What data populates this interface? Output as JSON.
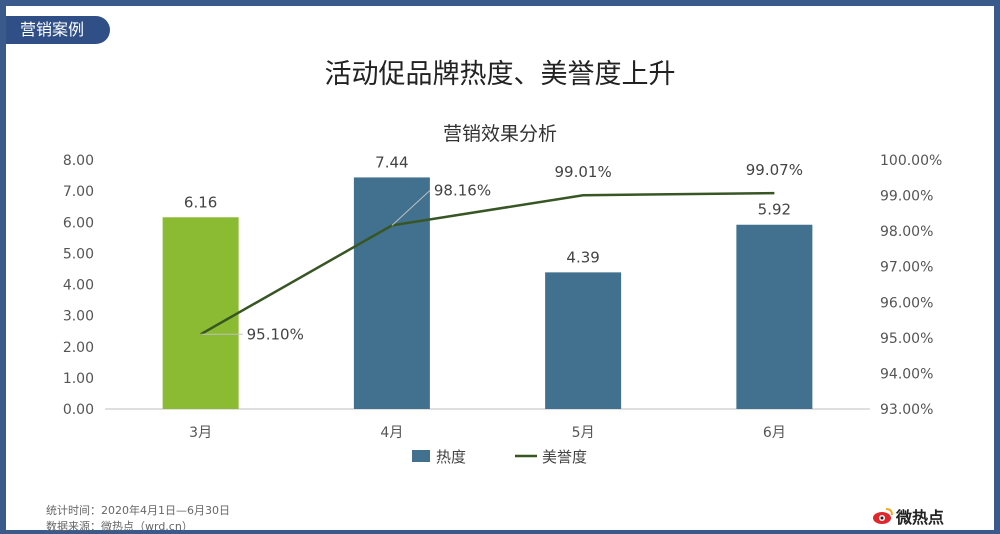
{
  "tag": "营销案例",
  "main_title": "活动促品牌热度、美誉度上升",
  "footnote": "统计时间：2020年4月1日—6月30日",
  "footnote_2": "数据来源：微热点（wrd.cn）",
  "logo_text": "微热点",
  "colors": {
    "bar_default": "#41718f",
    "bar_highlight": "#8bbb32",
    "line": "#375623",
    "frame": "#3a5a8c",
    "tag_bg": "#2f4f86"
  },
  "chart_data": {
    "type": "bar",
    "title": "营销效果分析",
    "categories": [
      "3月",
      "4月",
      "5月",
      "6月"
    ],
    "series": [
      {
        "name": "热度",
        "type": "bar",
        "axis": "left",
        "values": [
          6.16,
          7.44,
          4.39,
          5.92
        ],
        "labels": [
          "6.16",
          "7.44",
          "4.39",
          "5.92"
        ]
      },
      {
        "name": "美誉度",
        "type": "line",
        "axis": "right",
        "values": [
          95.1,
          98.16,
          99.01,
          99.07
        ],
        "labels": [
          "95.10%",
          "98.16%",
          "99.01%",
          "99.07%"
        ]
      }
    ],
    "ylim_left": [
      0,
      8
    ],
    "yticks_left": [
      "0.00",
      "1.00",
      "2.00",
      "3.00",
      "4.00",
      "5.00",
      "6.00",
      "7.00",
      "8.00"
    ],
    "ylim_right": [
      93,
      100
    ],
    "yticks_right": [
      "93.00%",
      "94.00%",
      "95.00%",
      "96.00%",
      "97.00%",
      "98.00%",
      "99.00%",
      "100.00%"
    ],
    "highlight_category": "3月",
    "grid": false,
    "legend_position": "bottom"
  }
}
